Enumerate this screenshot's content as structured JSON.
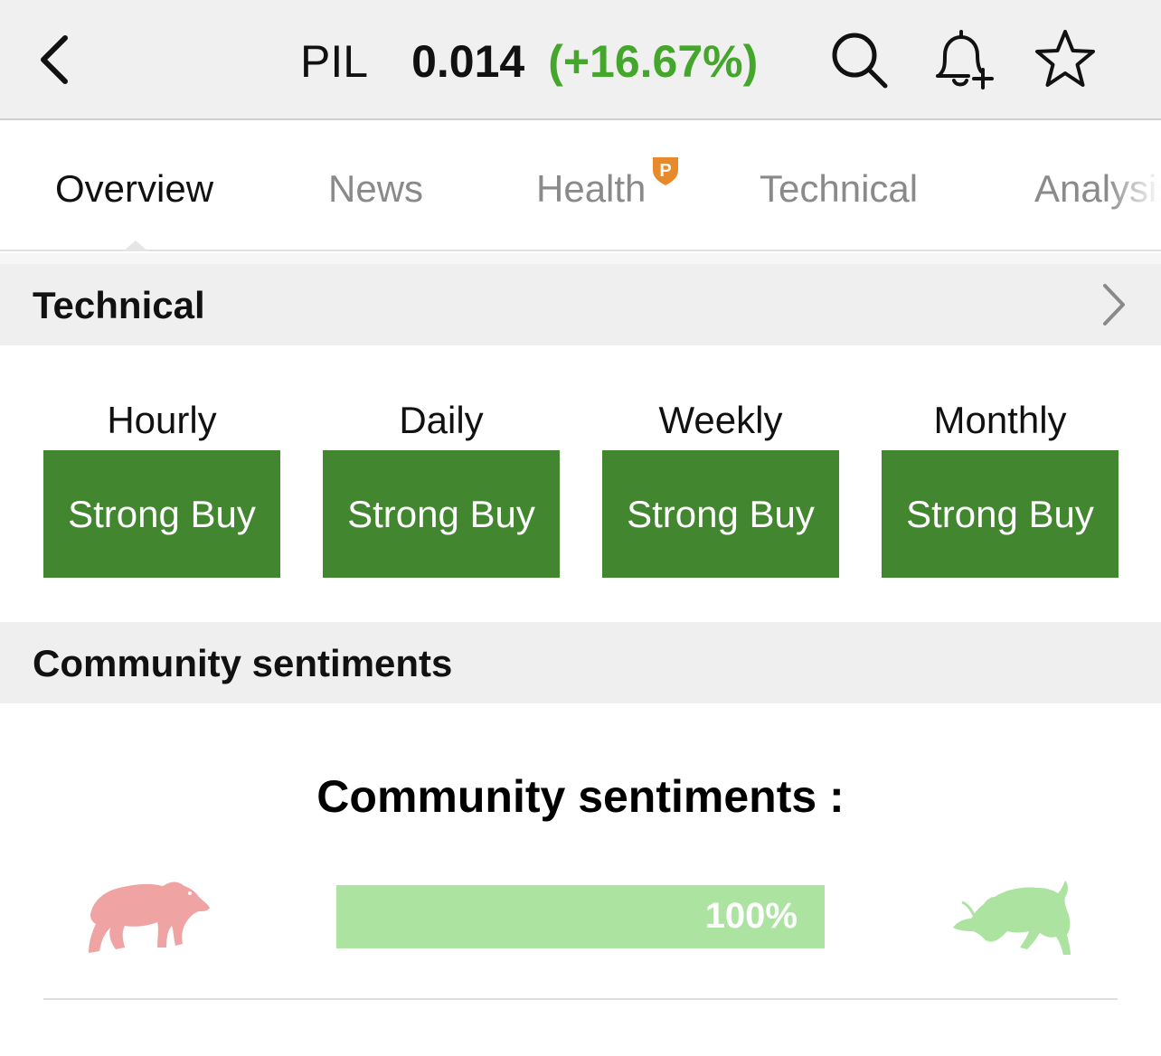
{
  "header": {
    "symbol": "PIL",
    "price": "0.014",
    "change": "(+16.67%)",
    "change_color": "#45a62c",
    "icons": [
      "back-chevron-icon",
      "search-icon",
      "bell-plus-icon",
      "star-icon"
    ]
  },
  "tabs": {
    "items": [
      {
        "label": "Overview",
        "active": true
      },
      {
        "label": "News",
        "active": false
      },
      {
        "label": "Health",
        "active": false,
        "badge_icon": "pro-shield-icon",
        "badge_color": "#e8892b"
      },
      {
        "label": "Technical",
        "active": false
      },
      {
        "label": "Analysis",
        "active": false
      }
    ]
  },
  "technical": {
    "title": "Technical",
    "accent": "#438630",
    "columns": [
      {
        "period": "Hourly",
        "signal": "Strong Buy"
      },
      {
        "period": "Daily",
        "signal": "Strong Buy"
      },
      {
        "period": "Weekly",
        "signal": "Strong Buy"
      },
      {
        "period": "Monthly",
        "signal": "Strong Buy"
      }
    ]
  },
  "community": {
    "header_title": "Community sentiments",
    "title": "Community sentiments :",
    "bullish_percent_label": "100%",
    "bullish_fraction": 1.0,
    "bear_color": "#efa3a3",
    "bull_color": "#ade3a0",
    "icons": [
      "bear-icon",
      "bull-icon"
    ]
  }
}
